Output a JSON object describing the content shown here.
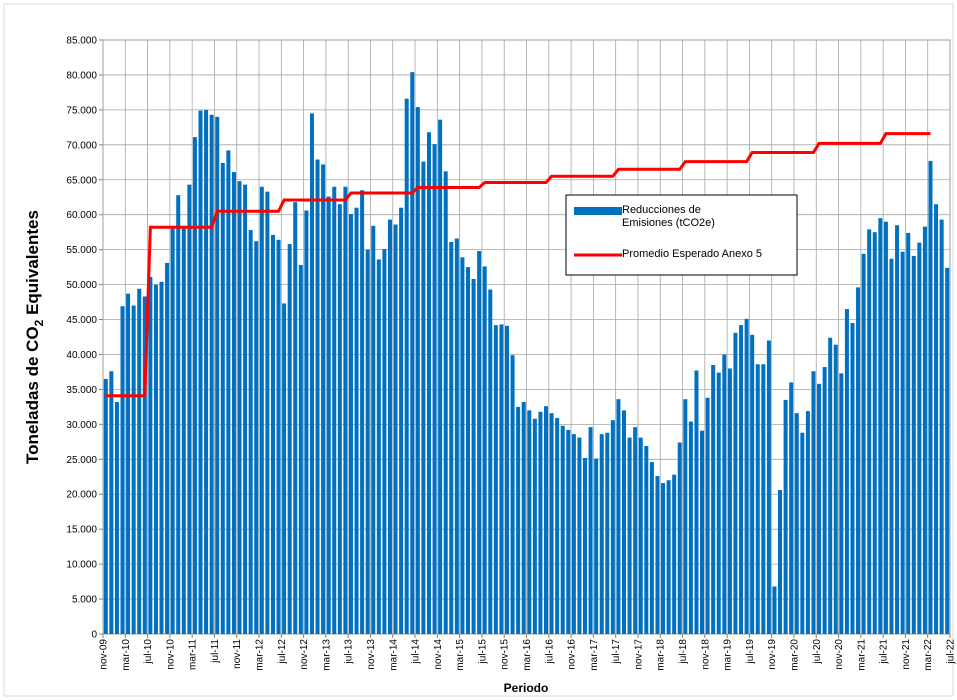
{
  "chart_data": {
    "type": "bar_line",
    "ylabel_parts": [
      "Toneladas de CO",
      "2",
      " Equivalentes"
    ],
    "xlabel": "Periodo",
    "categories": [
      "nov-09",
      null,
      null,
      null,
      "mar-10",
      null,
      null,
      null,
      "jul-10",
      null,
      null,
      null,
      "nov-10",
      null,
      null,
      null,
      "mar-11",
      null,
      null,
      null,
      "jul-11",
      null,
      null,
      null,
      "nov-11",
      null,
      null,
      null,
      "mar-12",
      null,
      null,
      null,
      "jul-12",
      null,
      null,
      null,
      "nov-12",
      null,
      null,
      null,
      "mar-13",
      null,
      null,
      null,
      "jul-13",
      null,
      null,
      null,
      "nov-13",
      null,
      null,
      null,
      "mar-14",
      null,
      null,
      null,
      "jul-14",
      null,
      null,
      null,
      "nov-14",
      null,
      null,
      null,
      "mar-15",
      null,
      null,
      null,
      "jul-15",
      null,
      null,
      null,
      "nov-15",
      null,
      null,
      null,
      "mar-16",
      null,
      null,
      null,
      "jul-16",
      null,
      null,
      null,
      "nov-16",
      null,
      null,
      null,
      "mar-17",
      null,
      null,
      null,
      "jul-17",
      null,
      null,
      null,
      "nov-17",
      null,
      null,
      null,
      "mar-18",
      null,
      null,
      null,
      "jul-18",
      null,
      null,
      null,
      "nov-18",
      null,
      null,
      null,
      "mar-19",
      null,
      null,
      null,
      "jul-19",
      null,
      null,
      null,
      "nov-19",
      null,
      null,
      null,
      "mar-20",
      null,
      null,
      null,
      "jul-20",
      null,
      null,
      null,
      "nov-20",
      null,
      null,
      null,
      "mar-21",
      null,
      null,
      null,
      "jul-21",
      null,
      null,
      null,
      "nov-21",
      null,
      null,
      null,
      "mar-22",
      null,
      null,
      null,
      "jul-22"
    ],
    "series": [
      {
        "name": "Reducciones de Emisiones (tCO2e)",
        "kind": "bar",
        "color": "#0070c0",
        "values": [
          36500,
          37600,
          33200,
          46900,
          48700,
          47000,
          49400,
          48300,
          51100,
          50000,
          50400,
          53100,
          58000,
          62800,
          58000,
          64300,
          71100,
          74900,
          75000,
          74300,
          74000,
          67400,
          69200,
          66100,
          64800,
          64300,
          57800,
          56200,
          64000,
          63300,
          57100,
          56400,
          47300,
          55800,
          61800,
          52800,
          60600,
          74500,
          67900,
          67200,
          62600,
          64000,
          61500,
          64000,
          60100,
          61000,
          63500,
          55000,
          58400,
          53600,
          55100,
          59300,
          58600,
          61000,
          76600,
          80400,
          75400,
          67600,
          71800,
          70100,
          73600,
          66200,
          56100,
          56600,
          53900,
          52500,
          50800,
          54800,
          52600,
          49300,
          44200,
          44300,
          44100,
          39900,
          32500,
          33200,
          32000,
          30800,
          31800,
          32600,
          31600,
          30900,
          29800,
          29200,
          28600,
          28100,
          25200,
          29600,
          25100,
          28600,
          28800,
          30600,
          33600,
          32000,
          28100,
          29600,
          28100,
          26900,
          24600,
          22600,
          21600,
          22000,
          22800,
          27400,
          33600,
          30400,
          37700,
          29100,
          33800,
          38500,
          37400,
          40000,
          38000,
          43100,
          44200,
          45100,
          42800,
          38600,
          38600,
          42000,
          6800,
          20600,
          33500,
          36000,
          31600,
          28800,
          31900,
          37600,
          35800,
          38200,
          42400,
          41400,
          37300,
          46500,
          44500,
          49600,
          54400,
          57900,
          57500,
          59500,
          59000,
          53700,
          58500,
          54700,
          57400,
          54100,
          56000,
          58300,
          67700,
          61500,
          59300,
          52400,
          null
        ]
      },
      {
        "name": "Promedio Esperado Anexo 5",
        "kind": "line",
        "color": "#ff0000",
        "values": [
          34100,
          34100,
          34100,
          34100,
          34100,
          34100,
          34100,
          34100,
          58200,
          58200,
          58200,
          58200,
          58200,
          58200,
          58200,
          58200,
          58200,
          58200,
          58200,
          58200,
          60500,
          60500,
          60500,
          60500,
          60500,
          60500,
          60500,
          60500,
          60500,
          60500,
          60500,
          60500,
          62100,
          62100,
          62100,
          62100,
          62100,
          62100,
          62100,
          62100,
          62100,
          62100,
          62100,
          62100,
          63100,
          63100,
          63100,
          63100,
          63100,
          63100,
          63100,
          63100,
          63100,
          63100,
          63100,
          63100,
          63900,
          63900,
          63900,
          63900,
          63900,
          63900,
          63900,
          63900,
          63900,
          63900,
          63900,
          63900,
          64600,
          64600,
          64600,
          64600,
          64600,
          64600,
          64600,
          64600,
          64600,
          64600,
          64600,
          64600,
          65500,
          65500,
          65500,
          65500,
          65500,
          65500,
          65500,
          65500,
          65500,
          65500,
          65500,
          65500,
          66500,
          66500,
          66500,
          66500,
          66500,
          66500,
          66500,
          66500,
          66500,
          66500,
          66500,
          66500,
          67600,
          67600,
          67600,
          67600,
          67600,
          67600,
          67600,
          67600,
          67600,
          67600,
          67600,
          67600,
          68900,
          68900,
          68900,
          68900,
          68900,
          68900,
          68900,
          68900,
          68900,
          68900,
          68900,
          68900,
          70200,
          70200,
          70200,
          70200,
          70200,
          70200,
          70200,
          70200,
          70200,
          70200,
          70200,
          70200,
          71600,
          71600,
          71600,
          71600,
          71600,
          71600,
          71600,
          71600,
          71600,
          null,
          null,
          null,
          null
        ]
      }
    ],
    "ylim": [
      0,
      85000
    ],
    "yticks": [
      0,
      {
        "value": 5000,
        "label": "5.000"
      },
      {
        "value": 10000,
        "label": "10.000"
      },
      {
        "value": 15000,
        "label": "15.000"
      },
      {
        "value": 20000,
        "label": "20.000"
      },
      {
        "value": 25000,
        "label": "25.000"
      },
      {
        "value": 30000,
        "label": "30.000"
      },
      {
        "value": 35000,
        "label": "35.000"
      },
      {
        "value": 40000,
        "label": "40.000"
      },
      {
        "value": 45000,
        "label": "45.000"
      },
      {
        "value": 50000,
        "label": "50.000"
      },
      {
        "value": 55000,
        "label": "55.000"
      },
      {
        "value": 60000,
        "label": "60.000"
      },
      {
        "value": 65000,
        "label": "65.000"
      },
      {
        "value": 70000,
        "label": "70.000"
      },
      {
        "value": 75000,
        "label": "75.000"
      },
      {
        "value": 80000,
        "label": "80.000"
      },
      {
        "value": 85000,
        "label": "85.000"
      }
    ],
    "grid": true
  }
}
